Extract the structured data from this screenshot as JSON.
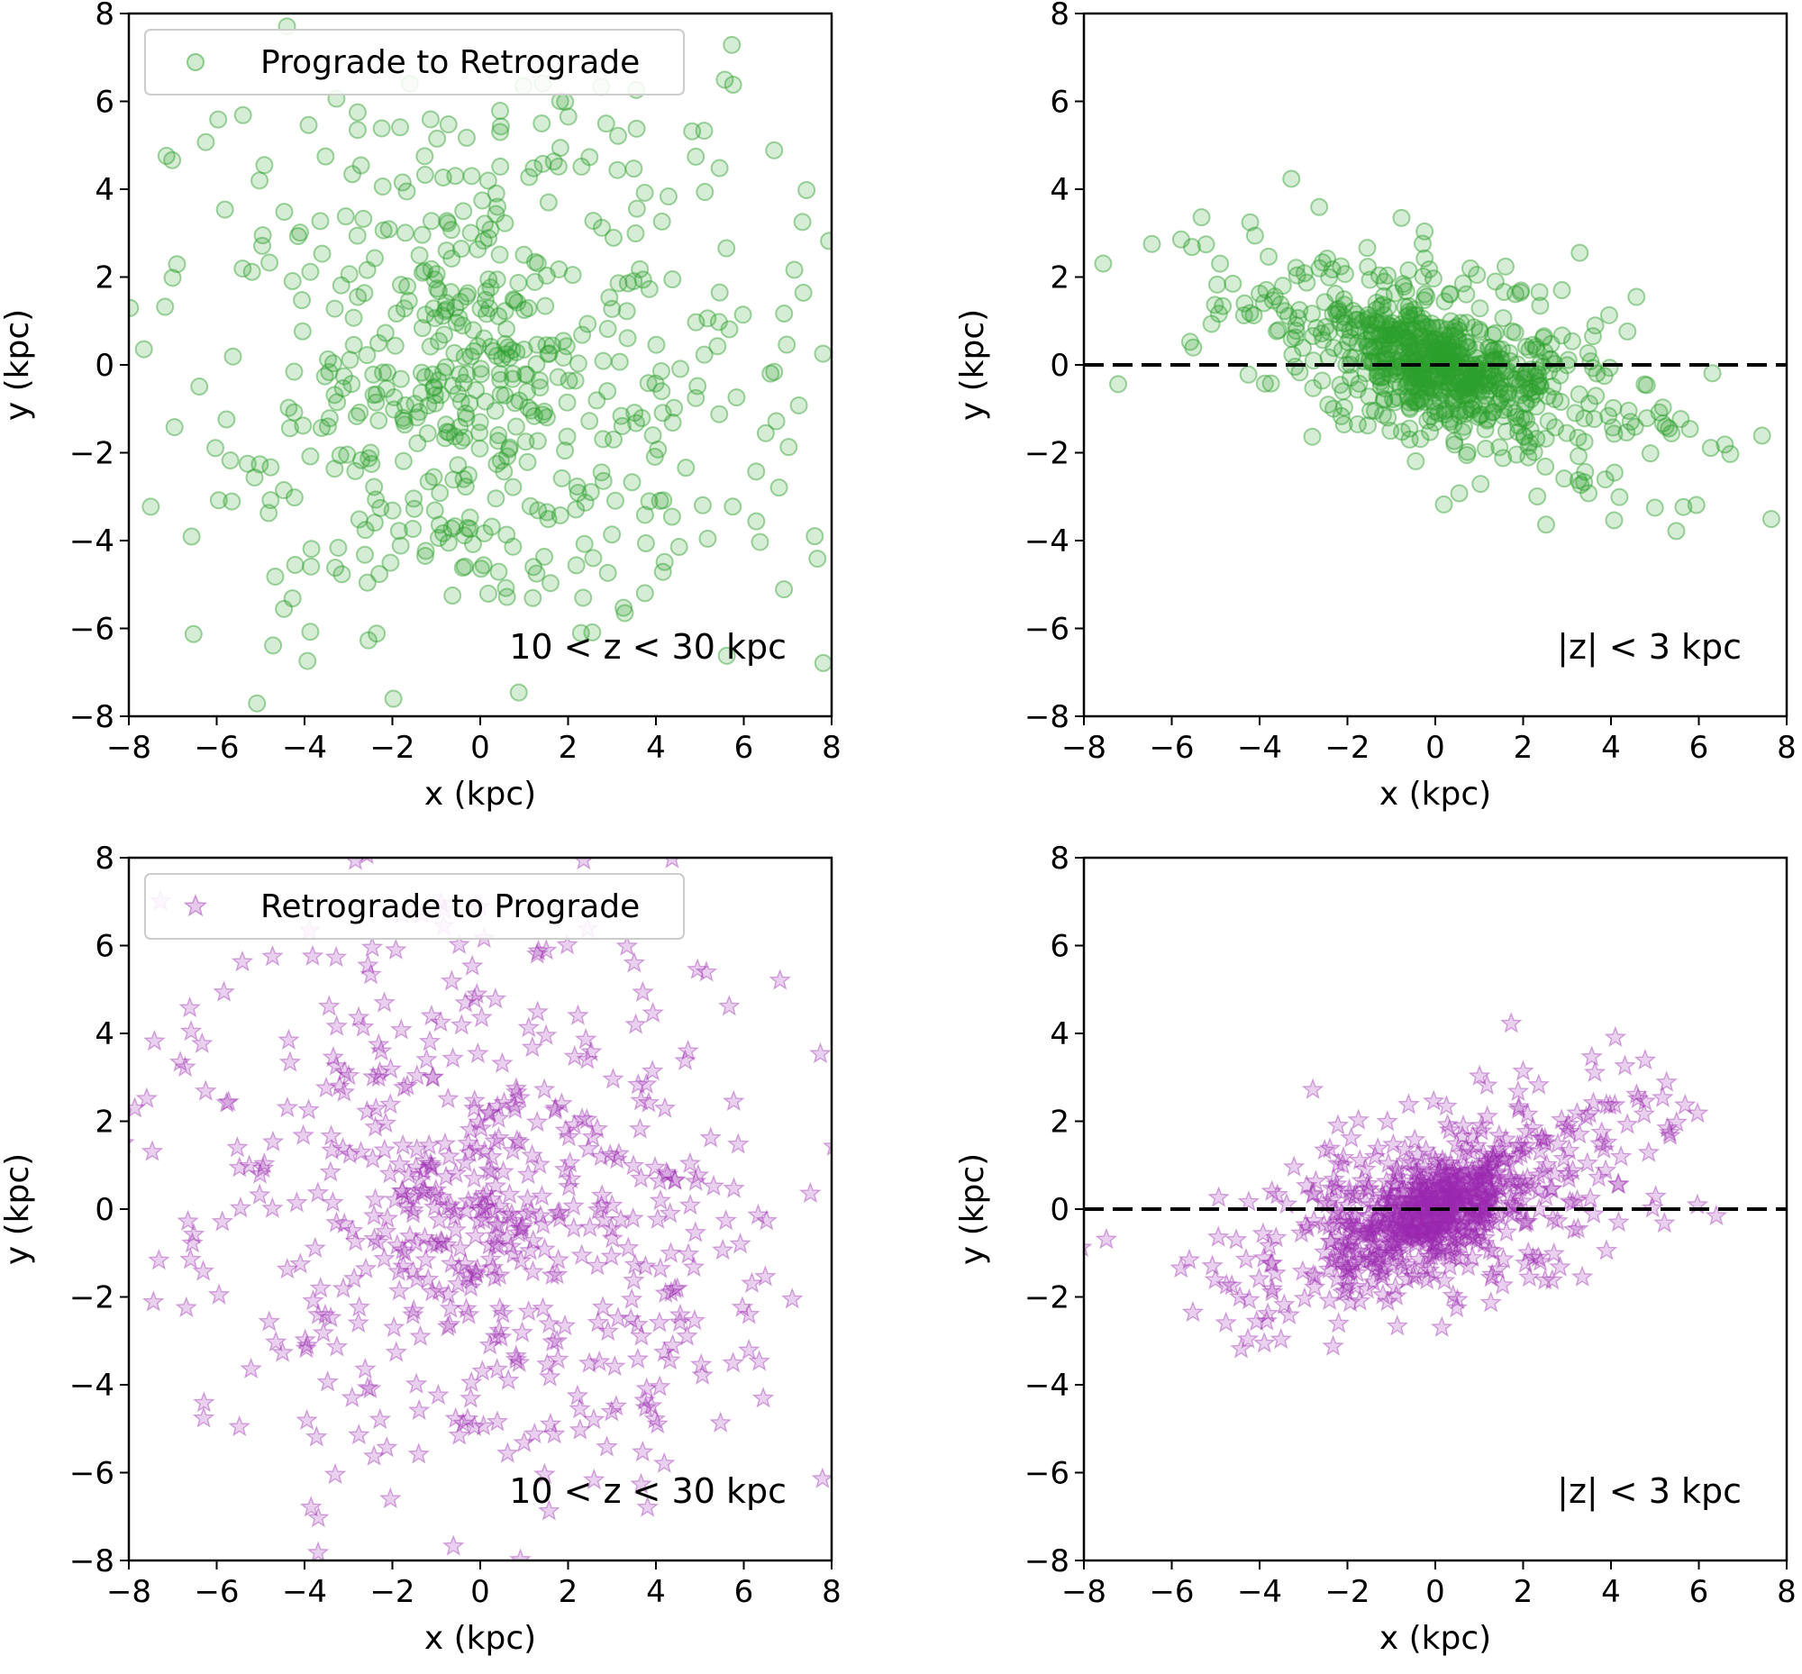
{
  "figure": {
    "panels": 4,
    "layout": "2x2 grid"
  },
  "colors": {
    "prograde_marker": "#2ca02c",
    "retrograde_marker": "#9c27b0",
    "axis": "#000000",
    "refline": "#000000"
  },
  "chart_data": [
    {
      "id": "top-left",
      "type": "scatter",
      "marker": "circle",
      "series_name": "Prograde to Retrograde",
      "legend": {
        "label": "Prograde to Retrograde",
        "position": "top-left"
      },
      "annotation": "10 < z < 30 kpc",
      "xlabel": "x (kpc)",
      "ylabel": "y (kpc)",
      "xlim": [
        -8,
        8
      ],
      "ylim": [
        -8,
        8
      ],
      "xticks": [
        -8,
        -6,
        -4,
        -2,
        0,
        2,
        4,
        6,
        8
      ],
      "yticks": [
        -8,
        -6,
        -4,
        -2,
        0,
        2,
        4,
        6,
        8
      ],
      "tick_labels": [
        "−8",
        "−6",
        "−4",
        "−2",
        "0",
        "2",
        "4",
        "6",
        "8"
      ],
      "distribution": {
        "n": 560,
        "cx": 0,
        "cy": 0,
        "sx": 3.4,
        "sy": 3.4,
        "slope": 0,
        "core_frac": 0.1,
        "core_sx": 1.0,
        "core_sy": 1.0,
        "seed": 11
      },
      "refline": null
    },
    {
      "id": "top-right",
      "type": "scatter",
      "marker": "circle",
      "series_name": "Prograde to Retrograde",
      "legend": null,
      "annotation": "|z| < 3 kpc",
      "xlabel": "x (kpc)",
      "ylabel": "y (kpc)",
      "xlim": [
        -8,
        8
      ],
      "ylim": [
        -8,
        8
      ],
      "xticks": [
        -8,
        -6,
        -4,
        -2,
        0,
        2,
        4,
        6,
        8
      ],
      "yticks": [
        -8,
        -6,
        -4,
        -2,
        0,
        2,
        4,
        6,
        8
      ],
      "tick_labels": [
        "−8",
        "−6",
        "−4",
        "−2",
        "0",
        "2",
        "4",
        "6",
        "8"
      ],
      "distribution": {
        "n": 780,
        "cx": 0,
        "cy": 0,
        "sx": 2.6,
        "sy": 1.1,
        "slope": -0.32,
        "core_frac": 0.42,
        "core_sx": 0.9,
        "core_sy": 0.55,
        "seed": 23
      },
      "refline": {
        "y": 0,
        "style": "dashed"
      }
    },
    {
      "id": "bottom-left",
      "type": "scatter",
      "marker": "star",
      "series_name": "Retrograde to Prograde",
      "legend": {
        "label": "Retrograde to Prograde",
        "position": "top-left"
      },
      "annotation": "10 < z < 30 kpc",
      "xlabel": "x (kpc)",
      "ylabel": "y (kpc)",
      "xlim": [
        -8,
        8
      ],
      "ylim": [
        -8,
        8
      ],
      "xticks": [
        -8,
        -6,
        -4,
        -2,
        0,
        2,
        4,
        6,
        8
      ],
      "yticks": [
        -8,
        -6,
        -4,
        -2,
        0,
        2,
        4,
        6,
        8
      ],
      "tick_labels": [
        "−8",
        "−6",
        "−4",
        "−2",
        "0",
        "2",
        "4",
        "6",
        "8"
      ],
      "distribution": {
        "n": 560,
        "cx": 0,
        "cy": 0,
        "sx": 3.4,
        "sy": 3.4,
        "slope": 0,
        "core_frac": 0.1,
        "core_sx": 1.0,
        "core_sy": 1.0,
        "seed": 37
      },
      "refline": null
    },
    {
      "id": "bottom-right",
      "type": "scatter",
      "marker": "star",
      "series_name": "Retrograde to Prograde",
      "legend": null,
      "annotation": "|z| < 3 kpc",
      "xlabel": "x (kpc)",
      "ylabel": "y (kpc)",
      "xlim": [
        -8,
        8
      ],
      "ylim": [
        -8,
        8
      ],
      "xticks": [
        -8,
        -6,
        -4,
        -2,
        0,
        2,
        4,
        6,
        8
      ],
      "yticks": [
        -8,
        -6,
        -4,
        -2,
        0,
        2,
        4,
        6,
        8
      ],
      "tick_labels": [
        "−8",
        "−6",
        "−4",
        "−2",
        "0",
        "2",
        "4",
        "6",
        "8"
      ],
      "distribution": {
        "n": 780,
        "cx": 0,
        "cy": 0,
        "sx": 2.6,
        "sy": 1.1,
        "slope": 0.32,
        "core_frac": 0.42,
        "core_sx": 0.9,
        "core_sy": 0.55,
        "seed": 41
      },
      "refline": {
        "y": 0,
        "style": "dashed"
      }
    }
  ]
}
